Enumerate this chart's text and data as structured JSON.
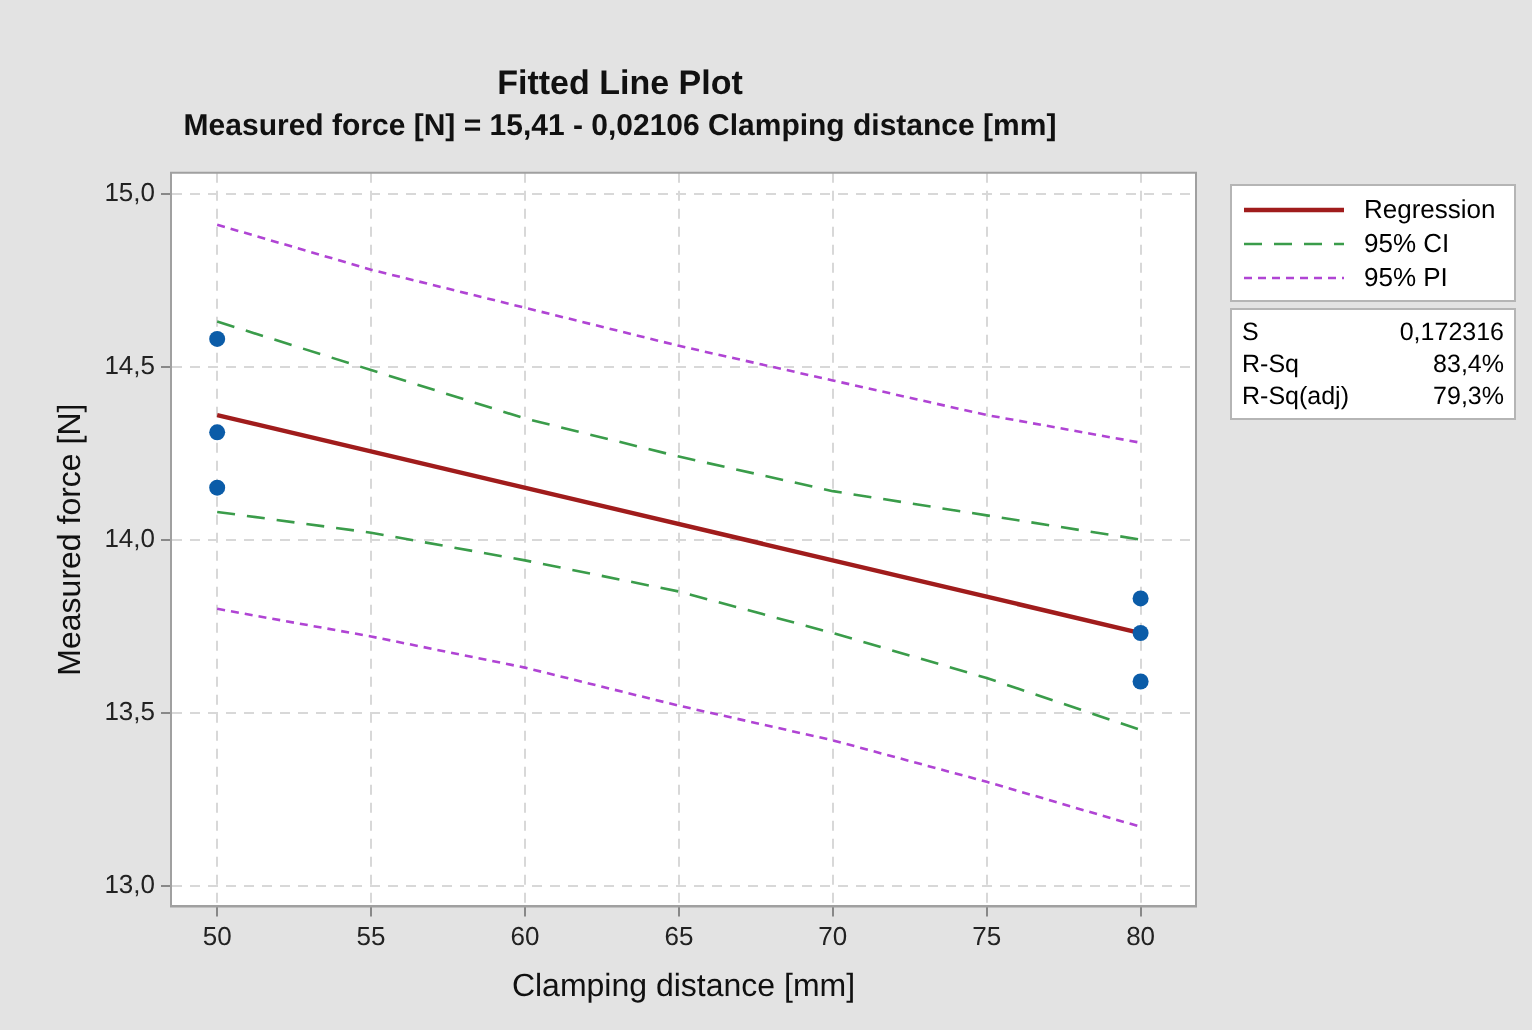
{
  "chart_data": {
    "type": "scatter",
    "title": "Fitted Line Plot",
    "subtitle": "Measured force [N] = 15,41 - 0,02106 Clamping distance [mm]",
    "xlabel": "Clamping distance [mm]",
    "ylabel": "Measured force [N]",
    "xlim": [
      48.5,
      81.8
    ],
    "xticks": [
      50,
      55,
      60,
      65,
      70,
      75,
      80
    ],
    "ylim": [
      12.94,
      15.06
    ],
    "yticks": [
      {
        "value": 13,
        "label": "13,0"
      },
      {
        "value": 13.5,
        "label": "13,5"
      },
      {
        "value": 14,
        "label": "14,0"
      },
      {
        "value": 14.5,
        "label": "14,5"
      },
      {
        "value": 15,
        "label": "15,0"
      }
    ],
    "grid": true,
    "legend": "top right",
    "marker": "circle",
    "annotations": [
      "S",
      "0,172316",
      "R-Sq",
      "83,4%",
      "R-Sq(adj)",
      "79,3%"
    ],
    "series": [
      {
        "color": "#0b5ca8",
        "x": [
          50,
          50,
          50,
          80,
          80,
          80
        ],
        "values": [
          14.58,
          14.31,
          14.15,
          13.83,
          13.73,
          13.59
        ]
      },
      {
        "type": "line",
        "name": "Regression",
        "color": "#a01c1c",
        "line_style": "solid",
        "marker": "none",
        "x": [
          50,
          80
        ],
        "values": [
          14.36,
          13.73
        ]
      },
      {
        "type": "line",
        "name": "95% CI",
        "color": "#3a9c4a",
        "line_style": "dashed",
        "marker": "none",
        "x": [
          50,
          55,
          60,
          65,
          70,
          75,
          80
        ],
        "values": [
          14.63,
          14.49,
          14.35,
          14.24,
          14.14,
          14.07,
          14.0
        ]
      },
      {
        "type": "line",
        "color": "#3a9c4a",
        "line_style": "dashed",
        "marker": "none",
        "x": [
          50,
          55,
          60,
          65,
          70,
          75,
          80
        ],
        "values": [
          14.08,
          14.02,
          13.94,
          13.85,
          13.73,
          13.6,
          13.45
        ]
      },
      {
        "type": "line",
        "name": "95% PI",
        "color": "#b044d4",
        "line_style": "dotted",
        "marker": "none",
        "x": [
          50,
          55,
          60,
          65,
          70,
          75,
          80
        ],
        "values": [
          14.91,
          14.78,
          14.67,
          14.56,
          14.46,
          14.36,
          14.28
        ]
      },
      {
        "type": "line",
        "color": "#b044d4",
        "line_style": "dotted",
        "marker": "none",
        "x": [
          50,
          55,
          60,
          65,
          70,
          75,
          80
        ],
        "values": [
          13.8,
          13.72,
          13.63,
          13.52,
          13.42,
          13.3,
          13.17
        ]
      }
    ]
  }
}
